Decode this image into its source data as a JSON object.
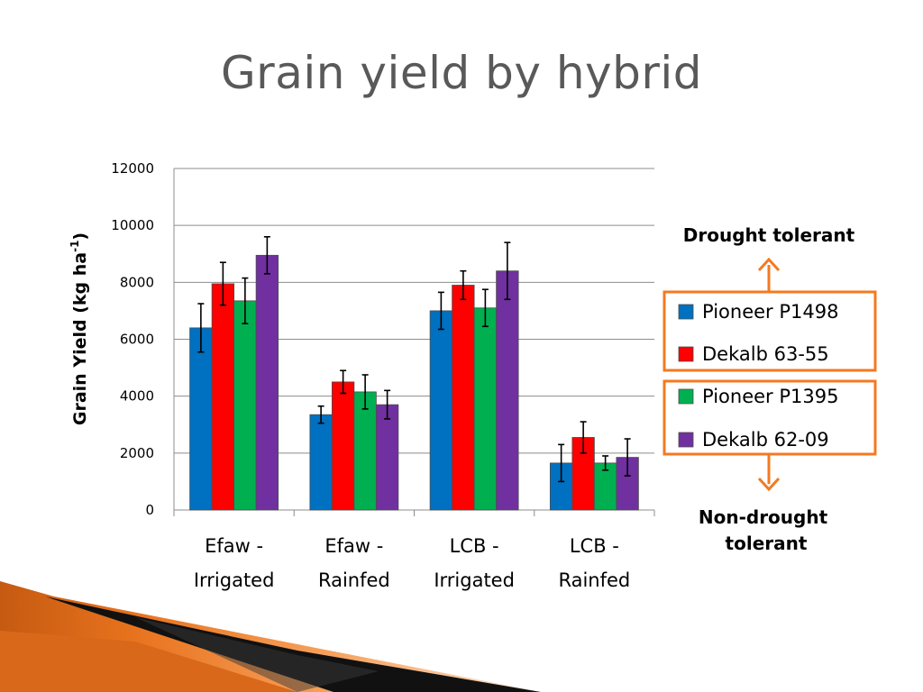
{
  "slide": {
    "title": "Grain yield by hybrid"
  },
  "chart_data": {
    "type": "bar",
    "ylabel": "Grain Yield (kg ha",
    "ylabel_sup": "-1",
    "ylabel_close": ")",
    "ylim": [
      0,
      12000
    ],
    "yticks": [
      0,
      2000,
      4000,
      6000,
      8000,
      10000,
      12000
    ],
    "grid": true,
    "categories": [
      [
        "Efaw -",
        "Irrigated"
      ],
      [
        "Efaw -",
        "Rainfed"
      ],
      [
        "LCB -",
        "Irrigated"
      ],
      [
        "LCB -",
        "Rainfed"
      ]
    ],
    "series": [
      {
        "name": "Pioneer P1498",
        "color": "#0070C0",
        "values": [
          6400,
          3350,
          7000,
          1650
        ],
        "errors": [
          850,
          300,
          650,
          650
        ]
      },
      {
        "name": "Dekalb 63-55",
        "color": "#FF0000",
        "values": [
          7950,
          4500,
          7900,
          2550
        ],
        "errors": [
          750,
          400,
          500,
          550
        ]
      },
      {
        "name": "Pioneer P1395",
        "color": "#00B050",
        "values": [
          7350,
          4150,
          7100,
          1650
        ],
        "errors": [
          800,
          600,
          650,
          250
        ]
      },
      {
        "name": "Dekalb 62-09",
        "color": "#7030A0",
        "values": [
          8950,
          3700,
          8400,
          1850
        ],
        "errors": [
          650,
          500,
          1000,
          650
        ]
      }
    ],
    "legend_position": "right"
  },
  "annotations": {
    "drought_tolerant": "Drought tolerant",
    "non_drought_line1": "Non-drought",
    "non_drought_line2": "tolerant",
    "accent_color": "#F47920"
  }
}
